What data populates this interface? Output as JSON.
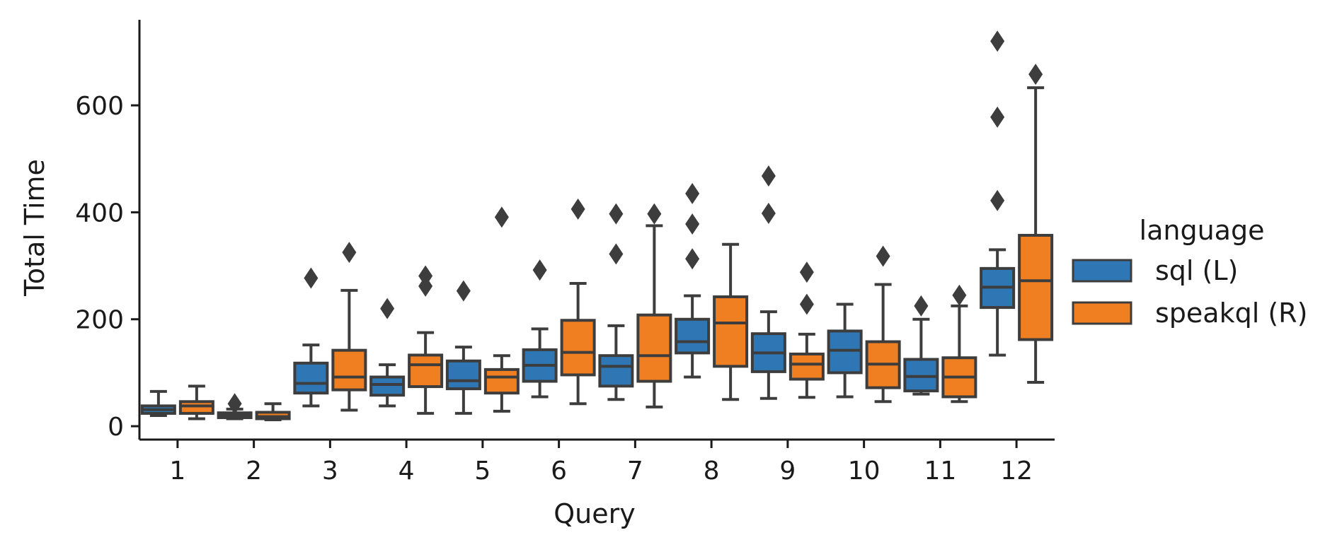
{
  "chart_data": {
    "type": "boxplot",
    "title": "",
    "xlabel": "Query",
    "ylabel": "Total Time",
    "ylim": [
      -25,
      760
    ],
    "yticks": [
      0,
      200,
      400,
      600
    ],
    "categories": [
      "1",
      "2",
      "3",
      "4",
      "5",
      "6",
      "7",
      "8",
      "9",
      "10",
      "11",
      "12"
    ],
    "legend": {
      "title": "language",
      "position": "right"
    },
    "grid": false,
    "series": [
      {
        "name": "sql (L)",
        "color": "#2f77b4",
        "boxes": [
          {
            "whislo": 20,
            "q1": 24,
            "med": 31,
            "q3": 38,
            "whishi": 65,
            "fliers": []
          },
          {
            "whislo": 14,
            "q1": 16,
            "med": 20,
            "q3": 25,
            "whishi": 32,
            "fliers": [
              42
            ]
          },
          {
            "whislo": 38,
            "q1": 62,
            "med": 80,
            "q3": 118,
            "whishi": 152,
            "fliers": [
              277
            ]
          },
          {
            "whislo": 38,
            "q1": 58,
            "med": 78,
            "q3": 92,
            "whishi": 115,
            "fliers": [
              220
            ]
          },
          {
            "whislo": 24,
            "q1": 70,
            "med": 85,
            "q3": 122,
            "whishi": 148,
            "fliers": [
              253
            ]
          },
          {
            "whislo": 55,
            "q1": 84,
            "med": 114,
            "q3": 143,
            "whishi": 182,
            "fliers": [
              292
            ]
          },
          {
            "whislo": 50,
            "q1": 75,
            "med": 112,
            "q3": 132,
            "whishi": 188,
            "fliers": [
              322,
              397
            ]
          },
          {
            "whislo": 92,
            "q1": 137,
            "med": 158,
            "q3": 200,
            "whishi": 244,
            "fliers": [
              313,
              378,
              435
            ]
          },
          {
            "whislo": 52,
            "q1": 102,
            "med": 137,
            "q3": 173,
            "whishi": 214,
            "fliers": [
              398,
              468
            ]
          },
          {
            "whislo": 55,
            "q1": 100,
            "med": 142,
            "q3": 178,
            "whishi": 228,
            "fliers": []
          },
          {
            "whislo": 60,
            "q1": 66,
            "med": 93,
            "q3": 125,
            "whishi": 200,
            "fliers": [
              225
            ]
          },
          {
            "whislo": 133,
            "q1": 222,
            "med": 260,
            "q3": 295,
            "whishi": 330,
            "fliers": [
              422,
              578,
              720
            ]
          }
        ]
      },
      {
        "name": "speakql (R)",
        "color": "#f07f22",
        "boxes": [
          {
            "whislo": 14,
            "q1": 24,
            "med": 38,
            "q3": 46,
            "whishi": 75,
            "fliers": []
          },
          {
            "whislo": 12,
            "q1": 14,
            "med": 18,
            "q3": 26,
            "whishi": 42,
            "fliers": []
          },
          {
            "whislo": 30,
            "q1": 68,
            "med": 92,
            "q3": 142,
            "whishi": 254,
            "fliers": [
              325
            ]
          },
          {
            "whislo": 24,
            "q1": 74,
            "med": 115,
            "q3": 133,
            "whishi": 175,
            "fliers": [
              262,
              281
            ]
          },
          {
            "whislo": 28,
            "q1": 62,
            "med": 92,
            "q3": 106,
            "whishi": 132,
            "fliers": [
              391
            ]
          },
          {
            "whislo": 42,
            "q1": 96,
            "med": 138,
            "q3": 198,
            "whishi": 267,
            "fliers": [
              406
            ]
          },
          {
            "whislo": 36,
            "q1": 84,
            "med": 132,
            "q3": 208,
            "whishi": 375,
            "fliers": [
              397
            ]
          },
          {
            "whislo": 50,
            "q1": 112,
            "med": 193,
            "q3": 242,
            "whishi": 340,
            "fliers": []
          },
          {
            "whislo": 54,
            "q1": 88,
            "med": 116,
            "q3": 135,
            "whishi": 172,
            "fliers": [
              228,
              288
            ]
          },
          {
            "whislo": 46,
            "q1": 72,
            "med": 116,
            "q3": 158,
            "whishi": 265,
            "fliers": [
              318
            ]
          },
          {
            "whislo": 46,
            "q1": 55,
            "med": 92,
            "q3": 128,
            "whishi": 225,
            "fliers": [
              245
            ]
          },
          {
            "whislo": 82,
            "q1": 162,
            "med": 272,
            "q3": 357,
            "whishi": 633,
            "fliers": [
              658
            ]
          }
        ]
      }
    ]
  }
}
